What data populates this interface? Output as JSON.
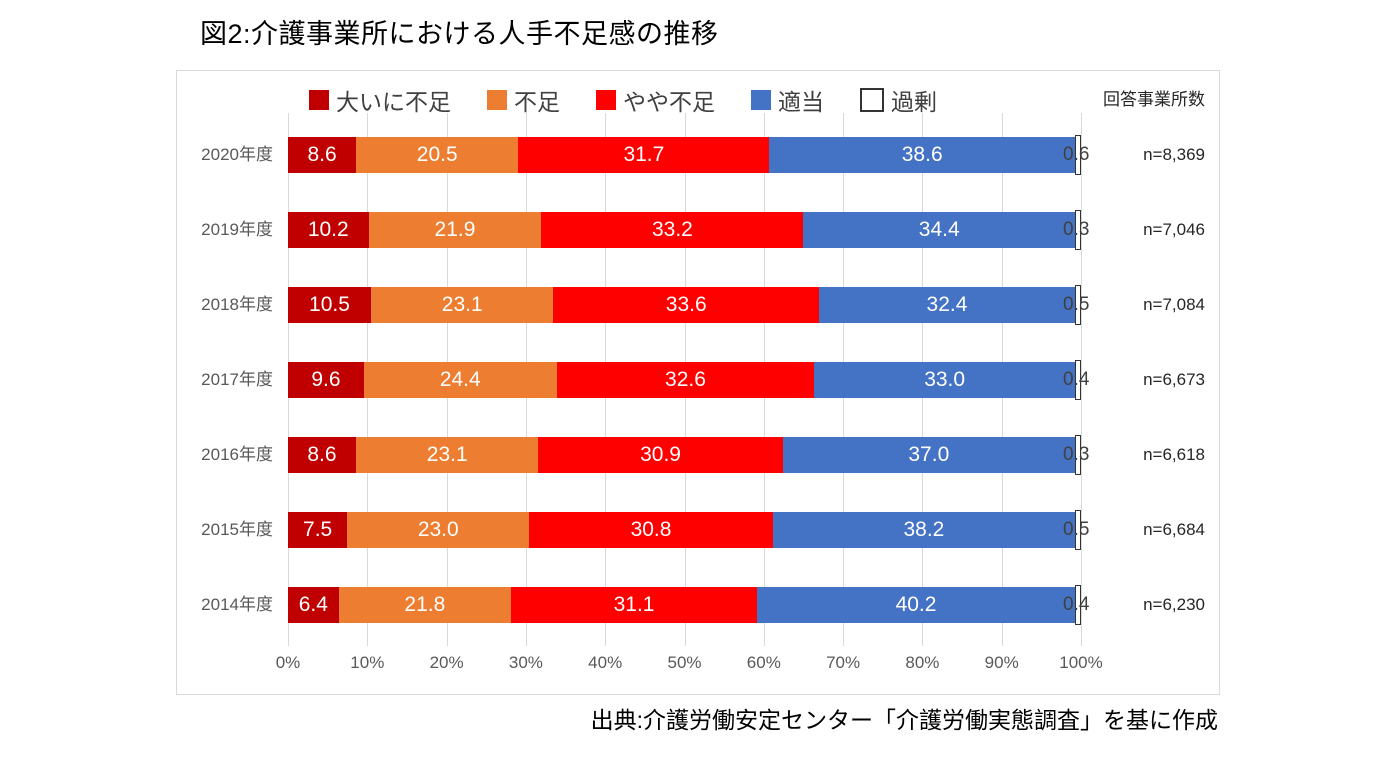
{
  "title": "図2:介護事業所における人手不足感の推移",
  "n_header": "回答事業所数",
  "source": "出典:介護労働安定センター「介護労働実態調査」を基に作成",
  "chart_data": {
    "type": "bar",
    "subtype": "horizontal-stacked-100",
    "title": "図2:介護事業所における人手不足感の推移",
    "legend_position": "top",
    "grid": true,
    "xlim": [
      0,
      100
    ],
    "x_ticks": [
      "0%",
      "10%",
      "20%",
      "30%",
      "40%",
      "50%",
      "60%",
      "70%",
      "80%",
      "90%",
      "100%"
    ],
    "categories": [
      "2020年度",
      "2019年度",
      "2018年度",
      "2017年度",
      "2016年度",
      "2015年度",
      "2014年度"
    ],
    "series": [
      {
        "key": "severe-shortage",
        "name": "大いに不足",
        "color": "#C00000",
        "values": [
          8.6,
          10.2,
          10.5,
          9.6,
          8.6,
          7.5,
          6.4
        ]
      },
      {
        "key": "shortage",
        "name": "不足",
        "color": "#ED7D31",
        "values": [
          20.5,
          21.9,
          23.1,
          24.4,
          23.1,
          23.0,
          21.8
        ]
      },
      {
        "key": "slight-shortage",
        "name": "やや不足",
        "color": "#FF0000",
        "values": [
          31.7,
          33.2,
          33.6,
          32.6,
          30.9,
          30.8,
          31.1
        ]
      },
      {
        "key": "adequate",
        "name": "適当",
        "color": "#4472C4",
        "values": [
          38.6,
          34.4,
          32.4,
          33.0,
          37.0,
          38.2,
          40.2
        ]
      },
      {
        "key": "surplus",
        "name": "過剰",
        "color": "#FFFFFF",
        "values": [
          0.6,
          0.3,
          0.5,
          0.4,
          0.3,
          0.5,
          0.4
        ]
      }
    ],
    "n_labels": [
      "n=8,369",
      "n=7,046",
      "n=7,084",
      "n=6,673",
      "n=6,618",
      "n=6,684",
      "n=6,230"
    ]
  }
}
